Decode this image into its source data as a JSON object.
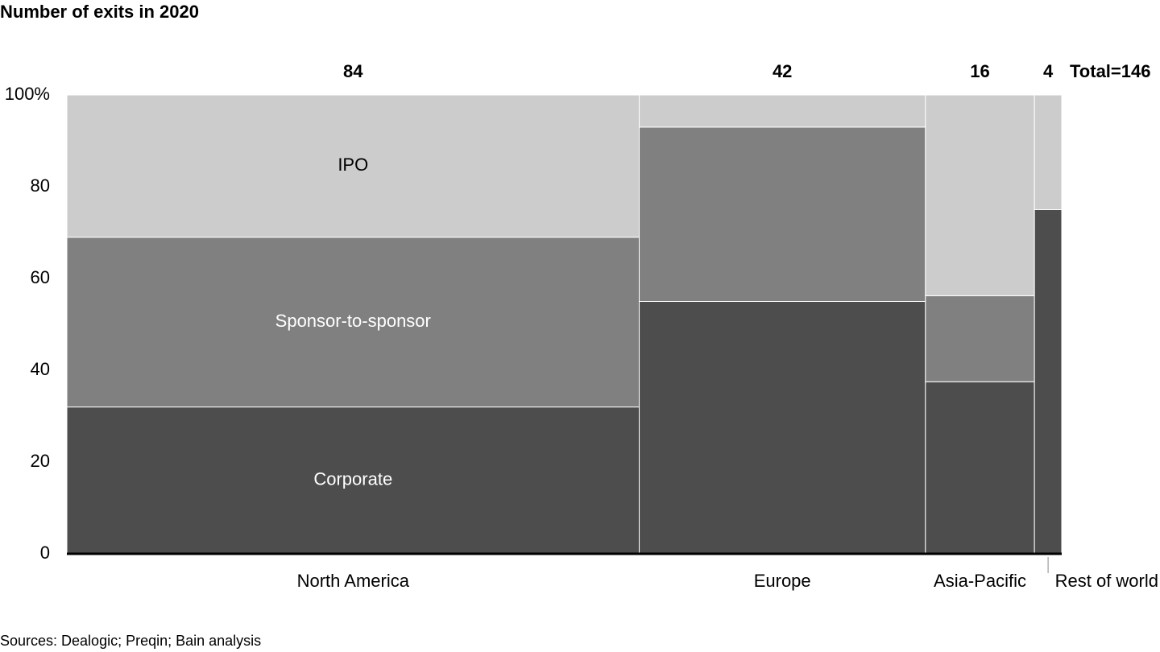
{
  "chart_data": {
    "type": "marimekko",
    "title": "Number of exits in 2020",
    "categories": [
      "North America",
      "Europe",
      "Asia-Pacific",
      "Rest of world"
    ],
    "widths": [
      84,
      42,
      16,
      4
    ],
    "total_label": "Total=146",
    "series": [
      {
        "name": "Corporate",
        "color": "#4d4d4d",
        "label_color": "#ffffff",
        "values": [
          32,
          55,
          37.5,
          75
        ]
      },
      {
        "name": "Sponsor-to-sponsor",
        "color": "#808080",
        "label_color": "#ffffff",
        "values": [
          37,
          38,
          18.75,
          0
        ]
      },
      {
        "name": "IPO",
        "color": "#cccccc",
        "label_color": "#000000",
        "values": [
          31,
          7,
          43.75,
          25
        ]
      }
    ],
    "ylim": [
      0,
      100
    ],
    "yticks": [
      0,
      20,
      40,
      60,
      80,
      {
        "value": 100,
        "label": "100%"
      }
    ],
    "source": "Sources: Dealogic; Preqin; Bain analysis"
  }
}
